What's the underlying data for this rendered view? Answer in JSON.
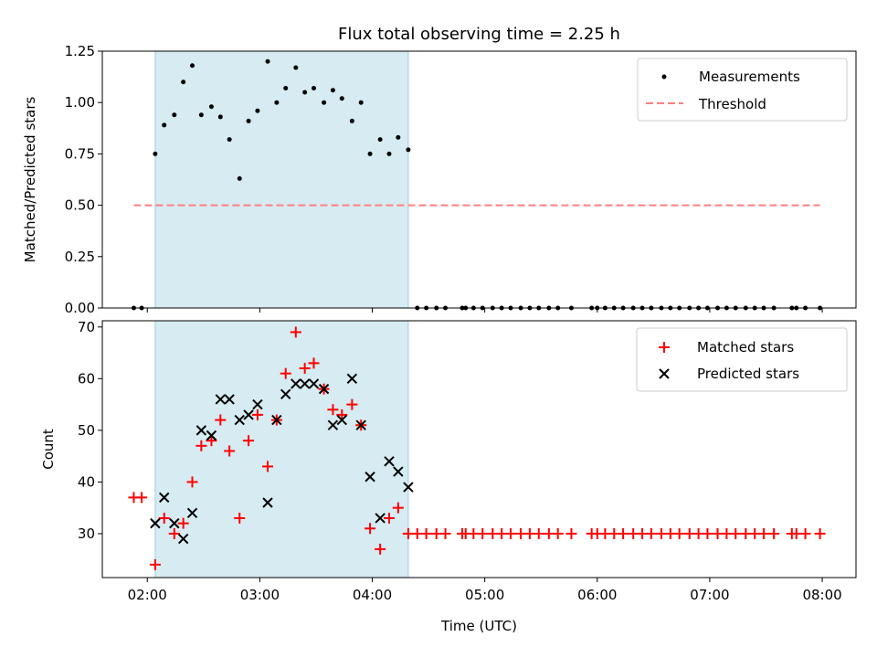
{
  "chart_data": [
    {
      "type": "scatter",
      "title": "Flux total observing time = 2.25 h",
      "xlabel": "",
      "ylabel": "Matched/Predicted stars",
      "ylim": [
        0,
        1.25
      ],
      "yticks": [
        "0.00",
        "0.25",
        "0.50",
        "0.75",
        "1.00",
        "1.25"
      ],
      "shaded_region": {
        "start": 2.07,
        "end": 4.32,
        "color": "#add8e6"
      },
      "legend_position": "top-right",
      "series": [
        {
          "name": "Measurements",
          "marker": "dot",
          "color": "#000000",
          "x": [
            1.88,
            1.95,
            2.07,
            2.15,
            2.24,
            2.32,
            2.4,
            2.48,
            2.57,
            2.65,
            2.73,
            2.82,
            2.9,
            2.98,
            3.07,
            3.15,
            3.23,
            3.32,
            3.4,
            3.48,
            3.57,
            3.65,
            3.73,
            3.82,
            3.9,
            3.98,
            4.07,
            4.15,
            4.23,
            4.32,
            4.4,
            4.48,
            4.57,
            4.65,
            4.8,
            4.83,
            4.9,
            4.98,
            5.07,
            5.15,
            5.23,
            5.32,
            5.4,
            5.48,
            5.57,
            5.65,
            5.77,
            5.95,
            6.0,
            6.07,
            6.15,
            6.23,
            6.32,
            6.4,
            6.48,
            6.57,
            6.65,
            6.73,
            6.82,
            6.9,
            6.98,
            7.07,
            7.15,
            7.23,
            7.32,
            7.4,
            7.48,
            7.57,
            7.73,
            7.77,
            7.85,
            7.98
          ],
          "y": [
            0,
            0,
            0.75,
            0.89,
            0.94,
            1.1,
            1.18,
            0.94,
            0.98,
            0.93,
            0.82,
            0.63,
            0.91,
            0.96,
            1.2,
            1.0,
            1.07,
            1.17,
            1.05,
            1.07,
            1.0,
            1.06,
            1.02,
            0.91,
            1.0,
            0.75,
            0.82,
            0.75,
            0.83,
            0.77,
            0,
            0,
            0,
            0,
            0,
            0,
            0,
            0,
            0,
            0,
            0,
            0,
            0,
            0,
            0,
            0,
            0,
            0,
            0,
            0,
            0,
            0,
            0,
            0,
            0,
            0,
            0,
            0,
            0,
            0,
            0,
            0,
            0,
            0,
            0,
            0,
            0,
            0,
            0,
            0,
            0,
            0
          ]
        },
        {
          "name": "Threshold",
          "marker": "dashed-line",
          "color": "#ff7f7f",
          "x": [
            1.88,
            7.98
          ],
          "y": [
            0.5,
            0.5
          ]
        }
      ]
    },
    {
      "type": "scatter",
      "title": "",
      "xlabel": "Time (UTC)",
      "ylabel": "Count",
      "ylim": [
        21.5,
        71.2
      ],
      "yticks": [
        "30",
        "40",
        "50",
        "60",
        "70"
      ],
      "xlim": [
        1.6,
        8.3
      ],
      "xticks": [
        "02:00",
        "03:00",
        "04:00",
        "05:00",
        "06:00",
        "07:00",
        "08:00"
      ],
      "shaded_region": {
        "start": 2.07,
        "end": 4.32,
        "color": "#add8e6"
      },
      "legend_position": "top-right",
      "series": [
        {
          "name": "Matched stars",
          "marker": "plus",
          "color": "#ff0000",
          "x": [
            1.88,
            1.95,
            2.07,
            2.15,
            2.24,
            2.32,
            2.4,
            2.48,
            2.57,
            2.65,
            2.73,
            2.82,
            2.9,
            2.98,
            3.07,
            3.15,
            3.23,
            3.32,
            3.4,
            3.48,
            3.57,
            3.65,
            3.73,
            3.82,
            3.9,
            3.98,
            4.07,
            4.15,
            4.23,
            4.32,
            4.4,
            4.48,
            4.57,
            4.65,
            4.8,
            4.83,
            4.9,
            4.98,
            5.07,
            5.15,
            5.23,
            5.32,
            5.4,
            5.48,
            5.57,
            5.65,
            5.77,
            5.95,
            6.0,
            6.07,
            6.15,
            6.23,
            6.32,
            6.4,
            6.48,
            6.57,
            6.65,
            6.73,
            6.82,
            6.9,
            6.98,
            7.07,
            7.15,
            7.23,
            7.32,
            7.4,
            7.48,
            7.57,
            7.73,
            7.77,
            7.85,
            7.98
          ],
          "y": [
            37,
            37,
            24,
            33,
            30,
            32,
            40,
            47,
            48,
            52,
            46,
            33,
            48,
            53,
            43,
            52,
            61,
            69,
            62,
            63,
            58,
            54,
            53,
            55,
            51,
            31,
            27,
            33,
            35,
            30,
            30,
            30,
            30,
            30,
            30,
            30,
            30,
            30,
            30,
            30,
            30,
            30,
            30,
            30,
            30,
            30,
            30,
            30,
            30,
            30,
            30,
            30,
            30,
            30,
            30,
            30,
            30,
            30,
            30,
            30,
            30,
            30,
            30,
            30,
            30,
            30,
            30,
            30,
            30,
            30,
            30,
            30
          ]
        },
        {
          "name": "Predicted stars",
          "marker": "x",
          "color": "#000000",
          "x": [
            2.07,
            2.15,
            2.24,
            2.32,
            2.4,
            2.48,
            2.57,
            2.65,
            2.73,
            2.82,
            2.9,
            2.98,
            3.07,
            3.15,
            3.23,
            3.32,
            3.4,
            3.48,
            3.57,
            3.65,
            3.73,
            3.82,
            3.9,
            3.98,
            4.07,
            4.15,
            4.23,
            4.32
          ],
          "y": [
            32,
            37,
            32,
            29,
            34,
            50,
            49,
            56,
            56,
            52,
            53,
            55,
            36,
            52,
            57,
            59,
            59,
            59,
            58,
            51,
            52,
            60,
            51,
            41,
            33,
            44,
            42,
            39
          ]
        }
      ]
    }
  ]
}
